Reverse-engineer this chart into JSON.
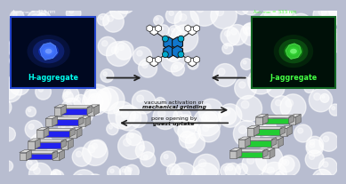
{
  "left_label": "H-aggregate",
  "right_label": "J-aggregate",
  "left_wav_text": "λ_em,max = 425 nm",
  "right_wav_text": "λ_em,max = 535 nm",
  "arrow_text_top": "vacuum activation or",
  "arrow_text_top2": "mechanical grinding",
  "arrow_text_bottom": "pore opening by",
  "arrow_text_bottom2": "guest uptake",
  "bg_color": "#b8bdd0",
  "left_box_bg": "#000820",
  "right_box_bg": "#001008",
  "left_box_edge": "#2244cc",
  "right_box_edge": "#116622",
  "blue_crystal": "#1122dd",
  "green_crystal": "#22bb22",
  "blue_plate": "#2222ee",
  "green_plate": "#22cc33",
  "gray_plate": "#c0c0c0",
  "gray_dark": "#888888",
  "left_wav_color": "#ffffff",
  "right_wav_color": "#66ff44"
}
